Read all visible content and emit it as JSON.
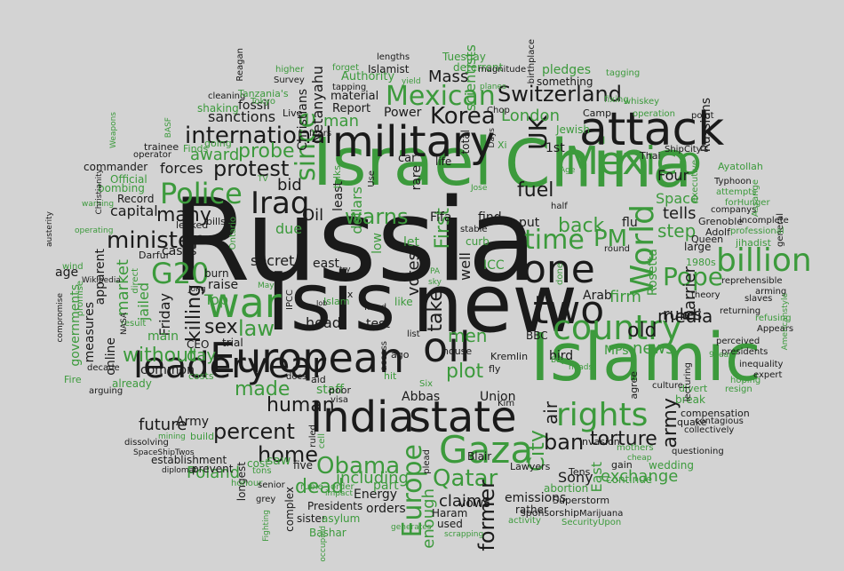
{
  "colors": {
    "background": "#d3d3d3",
    "dark": "#1a1a1a",
    "green": "#3c9a3c"
  },
  "words": {
    "russia": "Russia",
    "isis": "Isis",
    "new": "new",
    "israel": "Israel",
    "china": "China",
    "islamic": "Islamic",
    "military": "military",
    "attack": "attack",
    "european": "European",
    "oil": "oil",
    "india": "India",
    "state": "state",
    "leader": "leader",
    "year": "year",
    "gaza": "Gaza",
    "mexico": "Mexico",
    "war": "war",
    "one": "one",
    "two": "two",
    "country": "country",
    "world": "World",
    "billion": "billion",
    "rights": "rights",
    "police": "Police",
    "iraq": "Iraq",
    "mexican": "Mexican",
    "switzerland": "Switzerland",
    "korea": "Korea",
    "international": "international",
    "protest": "protest",
    "minister": "minister",
    "g20": "G20",
    "time": "time",
    "pm": "PM",
    "pope": "Pope",
    "obama": "Obama",
    "europe": "Europe",
    "qatar": "Qatar",
    "uk": "UK",
    "human": "human",
    "percent": "percent",
    "home": "home",
    "dead": "dead",
    "city": "City",
    "ban": "ban",
    "torture": "torture",
    "former": "former",
    "claims": "claims",
    "warns": "warns",
    "since": "since",
    "law": "law",
    "killing": "killing",
    "probe": "probe",
    "many": "many",
    "sex": "sex",
    "without": "without",
    "made": "made",
    "future": "future",
    "plot": "plot",
    "men": "men",
    "take": "take",
    "votes": "votes",
    "first": "First",
    "fuel": "fuel",
    "london": "London",
    "back": "back",
    "tells": "tells",
    "step": "step",
    "media": "media",
    "army": "army",
    "barrier": "Barrier",
    "rules": "rules",
    "old": "old",
    "news": "news",
    "firm": "firm",
    "exchange": "exchange",
    "sony": "Sony",
    "east_v": "East",
    "including": "including",
    "enough": "enough",
    "poland": "Poland",
    "mass": "Mass",
    "scientists": "scientists",
    "netanyahu": "Netanyahu",
    "christians": "Christians",
    "sanctions": "sanctions",
    "man_green": "man",
    "man": "Man",
    "power": "Power",
    "award": "award",
    "forces": "forces",
    "capital": "capital",
    "market": "market",
    "jailed": "jailed",
    "friday": "Friday",
    "day": "day",
    "oil_small": "Oil",
    "bid": "bid",
    "secret": "secret",
    "due": "due",
    "east": "east",
    "head": "head",
    "test": "test",
    "abbas": "Abbas",
    "union": "Union",
    "staff": "staff",
    "four": "Four",
    "space": "Space",
    "fifa": "Fifa",
    "find": "find",
    "put": "put",
    "flu": "flu",
    "well": "well",
    "arab": "Arab",
    "mps": "MPs",
    "bird": "bird",
    "blair": "Blair",
    "energy": "Energy",
    "orders": "orders",
    "emissions": "emissions",
    "vows": "vows",
    "used": "used",
    "haram": "Haram",
    "rather": "rather",
    "presidents": "Presidents",
    "sister": "sister",
    "asylum": "asylum",
    "bashar": "Bashar",
    "saw": "saw",
    "cost": "cost",
    "five": "five",
    "longest": "longest",
    "establishment": "establishment",
    "prevent": "prevent",
    "army_small": "Army",
    "common": "common",
    "main": "main",
    "top": "Top",
    "apparent": "apparent",
    "measures": "measures",
    "online": "online",
    "governments": "governments",
    "age": "age",
    "commander": "commander",
    "official": "Official",
    "record": "Record",
    "bombing": "bombing",
    "trainee": "trainee",
    "operator": "operator",
    "cases": "cases",
    "darfur": "Darfur",
    "burn": "burn",
    "raise": "raise",
    "trial": "trial",
    "ceo": "CEO",
    "dollars": "dollars",
    "least": "least",
    "material": "material",
    "report": "Report",
    "fossil": "fossil",
    "authority": "Authority",
    "islamist": "Islamist",
    "tuesday": "Tuesday",
    "deterrent": "deterrent",
    "pledges": "pledges",
    "something": "something",
    "camp": "Camp",
    "1st": "1st",
    "jewish": "Jewish",
    "thai": "Thai",
    "russians": "Russians",
    "ayatollah": "Ayatollah",
    "typhoon": "Typhoon",
    "grenoble": "Grenoble",
    "adolf": "Adolf",
    "queen": "Queen",
    "jihadist": "jihadist",
    "companys": "companys",
    "rosetta": "Rosetta",
    "large": "large",
    "1980s": "1980s",
    "icc": "ICC",
    "curb": "curb",
    "bills": "bills",
    "leaked": "leaked",
    "live": "Live",
    "life": "life",
    "car": "car",
    "rare": "rare",
    "total": "total",
    "air": "air",
    "bbc": "BBC",
    "kremlin": "Kremlin",
    "fly": "fly",
    "lawyers": "Lawyers",
    "superstorm": "Superstorm",
    "sponsorship": "sponsorship",
    "marijuana": "Marijuana",
    "abortion": "abortion",
    "continue": "continue",
    "wedding": "wedding",
    "tens": "Tens",
    "invasion": "invasion",
    "gain": "gain",
    "compensation": "compensation",
    "collectively": "collectively",
    "contagious": "contagious",
    "quake": "quake",
    "break": "break",
    "questioning": "questioning",
    "divert": "divert",
    "inequality": "inequality",
    "hoping": "hoping",
    "resign": "resign",
    "expert": "expert",
    "agree": "agree",
    "lecturing": "lecturing",
    "theory": "theory",
    "perceived": "perceived",
    "presidents_lc": "presidents",
    "returning": "returning",
    "slaves": "slaves",
    "appears": "Appears",
    "arming": "arming",
    "refusing": "refusing",
    "reprehensible": "reprehensible",
    "point": "point",
    "ship": "Ship",
    "citys": "City's",
    "executive": "executive",
    "attempts": "attempts",
    "forhunger": "forHunger",
    "incomplete": "incomplete",
    "general": "general",
    "assange": "Assange",
    "professional": "professional",
    "operation": "operation",
    "whiskey": "whiskey",
    "fixing": "fixing",
    "tagging": "tagging",
    "magnitude": "magnitude",
    "lengths": "lengths",
    "reagan": "Reagan",
    "survey": "Survey",
    "cleaning": "cleaning",
    "tanzanias": "Tanzania's",
    "tokyo": "Tokyo",
    "shaking": "shaking",
    "going": "going",
    "finds": "Finds",
    "higher": "higher",
    "forget": "forget",
    "yield": "yield",
    "planes": "planes",
    "tapping": "tapping",
    "birthplace": "birthplace",
    "chop": "Chop",
    "days": "Days",
    "xi": "Xi",
    "jose": "Jose",
    "use": "Use",
    "talks": "talks",
    "fears": "fears",
    "order": "order",
    "ruble": "ruble",
    "impact": "impact",
    "generates": "generates",
    "scrapping": "scrapping",
    "activity": "activity",
    "securityupon": "SecurityUpon",
    "fire": "Fire",
    "already": "already",
    "costs": "costs",
    "mining": "mining",
    "build": "build",
    "dissolving": "dissolving",
    "spaceshiptwos": "SpaceShipTwos",
    "diplomat": "diplomat",
    "honour": "honour",
    "tons": "tons",
    "complex": "complex",
    "senior": "senior",
    "grey": "grey",
    "compromise": "compromise",
    "promise": "promise",
    "decade": "decade",
    "arguing": "arguing",
    "result": "result",
    "direct": "direct",
    "nasa": "NASA",
    "wikipedia": "Wikipedia",
    "austerity": "austerity",
    "operating": "operating",
    "warning": "warning",
    "wind": "wind",
    "ontario": "Ontario",
    "may": "May",
    "jong": "Jong",
    "hold": "hold",
    "ipcc": "IPCC",
    "fix": "fix",
    "list": "list",
    "like": "like",
    "islam": "Islam",
    "fined": "fined",
    "docs": "docs",
    "visa": "visa",
    "aid": "aid",
    "poor": "poor",
    "kim": "Kim",
    "six": "Six",
    "cell": "cell",
    "plead": "plead",
    "ruled": "ruled",
    "let": "let",
    "low": "low",
    "half": "half",
    "round": "round",
    "done": "done",
    "win": "win",
    "stable": "stable",
    "sky": "sky",
    "pa": "PA",
    "job": "Job",
    "job_try": "try",
    "tv": "TV",
    "weapons": "Weapons",
    "basf": "BASF",
    "christianity": "Christianity",
    "ago": "ago",
    "hit": "hit",
    "part": "part",
    "access": "access",
    "house": "house",
    "age_small": "Age",
    "9year": "9year",
    "bay": "Bay",
    "heads": "heads",
    "culture": "culture",
    "mothers": "mothers",
    "cheap": "cheap",
    "americanstyle": "Americanstyle",
    "fighting": "Fighting",
    "occupied": "occupied"
  }
}
